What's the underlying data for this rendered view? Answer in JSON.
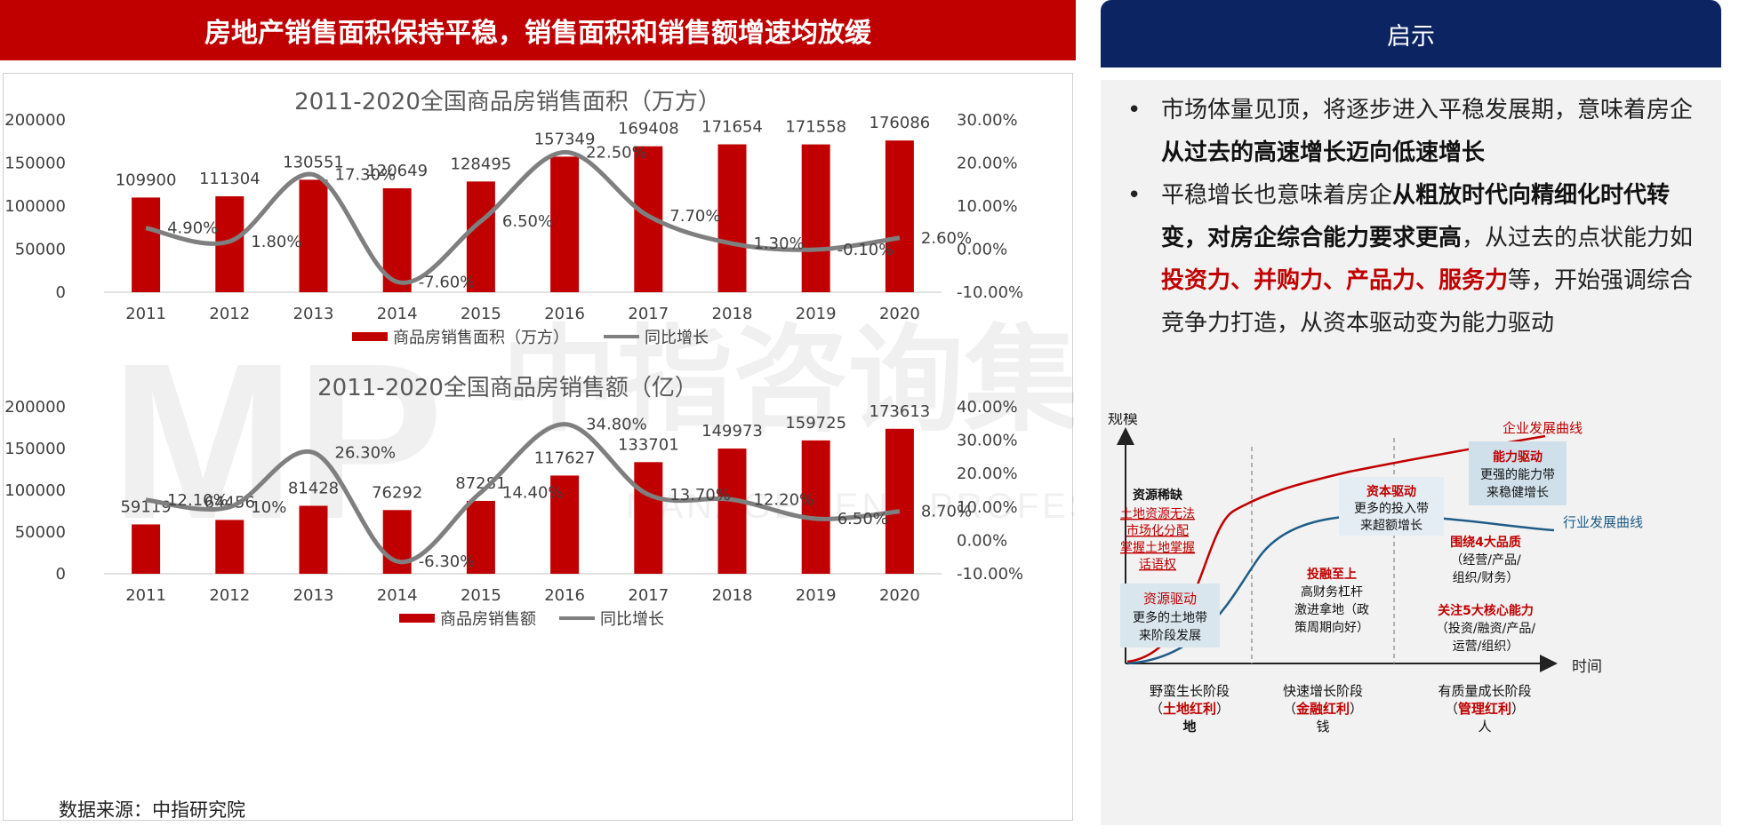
{
  "header": {
    "title": "房地产销售面积保持平稳，销售面积和销售额增速均放缓",
    "insight_title": "启示"
  },
  "source": "数据来源：中指研究院",
  "insights": {
    "bullet1": {
      "p1": "市场体量见顶，将逐步进入平稳发展期，意味着房企",
      "p2": "从过去的高速增长迈向低速增长"
    },
    "bullet2": {
      "p1": "平稳增长也意味着房企",
      "p2": "从粗放时代向精细化时代转变，对房企综合能力要求更高",
      "p3": "，从过去的点状能力如",
      "p4": "投资力、并购力、产品力、服务力",
      "p5": "等，开始强调综合竞争力打造，从资本驱动变为能力驱动"
    }
  },
  "diagram": {
    "y_axis": "规模",
    "x_axis": "时间",
    "curve_enterprise": "企业发展曲线",
    "curve_industry": "行业发展曲线",
    "stage1": {
      "title": "资源稀缺",
      "red_lines": [
        "土地资源无法",
        "市场化分配",
        "掌握土地掌握",
        "话语权"
      ],
      "box_title": "资源驱动",
      "box_lines": [
        "更多的土地带",
        "来阶段发展"
      ],
      "label": "野蛮生长阶段",
      "dividend": "土地红利",
      "factor": "地"
    },
    "stage2": {
      "box_title": "资本驱动",
      "box_lines": [
        "更多的投入带",
        "来超额增长"
      ],
      "title": "投融至上",
      "lines": [
        "高财务杠杆",
        "激进拿地（政",
        "策周期向好）"
      ],
      "label": "快速增长阶段",
      "dividend": "金融红利",
      "factor": "钱"
    },
    "stage3": {
      "box_title": "能力驱动",
      "box_lines": [
        "更强的能力带",
        "来稳健增长"
      ],
      "t1": "围绕4大品质",
      "t1_lines": [
        "（经营/产品/",
        "组织/财务）"
      ],
      "t2": "关注5大核心能力",
      "t2_lines": [
        "（投资/融资/产品/",
        "运营/组织）"
      ],
      "label": "有质量成长阶段",
      "dividend": "管理红利",
      "factor": "人"
    },
    "colors": {
      "red": "#c00000",
      "blue": "#1f5c87",
      "box": "#d9e6ee"
    }
  },
  "watermark": {
    "text": "中指咨询集团",
    "sub": "MANAGEMENT PROFESSIONAL GROUP"
  },
  "chart_data": [
    {
      "type": "bar",
      "title": "2011-2020全国商品房销售面积（万方）",
      "categories": [
        "2011",
        "2012",
        "2013",
        "2014",
        "2015",
        "2016",
        "2017",
        "2018",
        "2019",
        "2020"
      ],
      "series": [
        {
          "name": "商品房销售面积（万方）",
          "kind": "bar",
          "axis": "left",
          "color": "#c00000",
          "values": [
            109900,
            111304,
            130551,
            120649,
            128495,
            157349,
            169408,
            171654,
            171558,
            176086
          ],
          "labels": [
            "109900",
            "111304",
            "130551",
            "120649",
            "128495",
            "157349",
            "169408",
            "171654",
            "171558",
            "176086"
          ]
        },
        {
          "name": "同比增长",
          "kind": "line",
          "axis": "right",
          "color": "#7f7f7f",
          "values": [
            4.9,
            1.8,
            17.3,
            -7.6,
            6.5,
            22.5,
            7.7,
            1.3,
            -0.1,
            2.6
          ],
          "labels": [
            "4.90%",
            "1.80%",
            "17.30%",
            "-7.60%",
            "6.50%",
            "22.50%",
            "7.70%",
            "1.30%",
            "-0.10%",
            "2.60%"
          ]
        }
      ],
      "ylim": [
        0,
        200000
      ],
      "yticks": [
        "0",
        "50000",
        "100000",
        "150000",
        "200000"
      ],
      "y2lim": [
        -10,
        30
      ],
      "y2ticks": [
        "-10.00%",
        "0.00%",
        "10.00%",
        "20.00%",
        "30.00%"
      ],
      "legend": "bottom"
    },
    {
      "type": "bar",
      "title": "2011-2020全国商品房销售额（亿）",
      "categories": [
        "2011",
        "2012",
        "2013",
        "2014",
        "2015",
        "2016",
        "2017",
        "2018",
        "2019",
        "2020"
      ],
      "series": [
        {
          "name": "商品房销售额",
          "kind": "bar",
          "axis": "left",
          "color": "#c00000",
          "values": [
            59119,
            64456,
            81428,
            76292,
            87281,
            117627,
            133701,
            149973,
            159725,
            173613
          ],
          "labels": [
            "59119",
            "64456",
            "81428",
            "76292",
            "87281",
            "117627",
            "133701",
            "149973",
            "159725",
            "173613"
          ]
        },
        {
          "name": "同比增长",
          "kind": "line",
          "axis": "right",
          "color": "#7f7f7f",
          "values": [
            12.1,
            10,
            26.3,
            -6.3,
            14.4,
            34.8,
            13.7,
            12.2,
            6.5,
            8.7
          ],
          "labels": [
            "12.10%",
            "10%",
            "26.30%",
            "-6.30%",
            "14.40%",
            "34.80%",
            "13.70%",
            "12.20%",
            "6.50%",
            "8.70%"
          ]
        }
      ],
      "ylim": [
        0,
        200000
      ],
      "yticks": [
        "0",
        "50000",
        "100000",
        "150000",
        "200000"
      ],
      "y2lim": [
        -10,
        40
      ],
      "y2ticks": [
        "-10.00%",
        "0.00%",
        "10.00%",
        "20.00%",
        "30.00%",
        "40.00%"
      ],
      "legend": "bottom"
    }
  ]
}
